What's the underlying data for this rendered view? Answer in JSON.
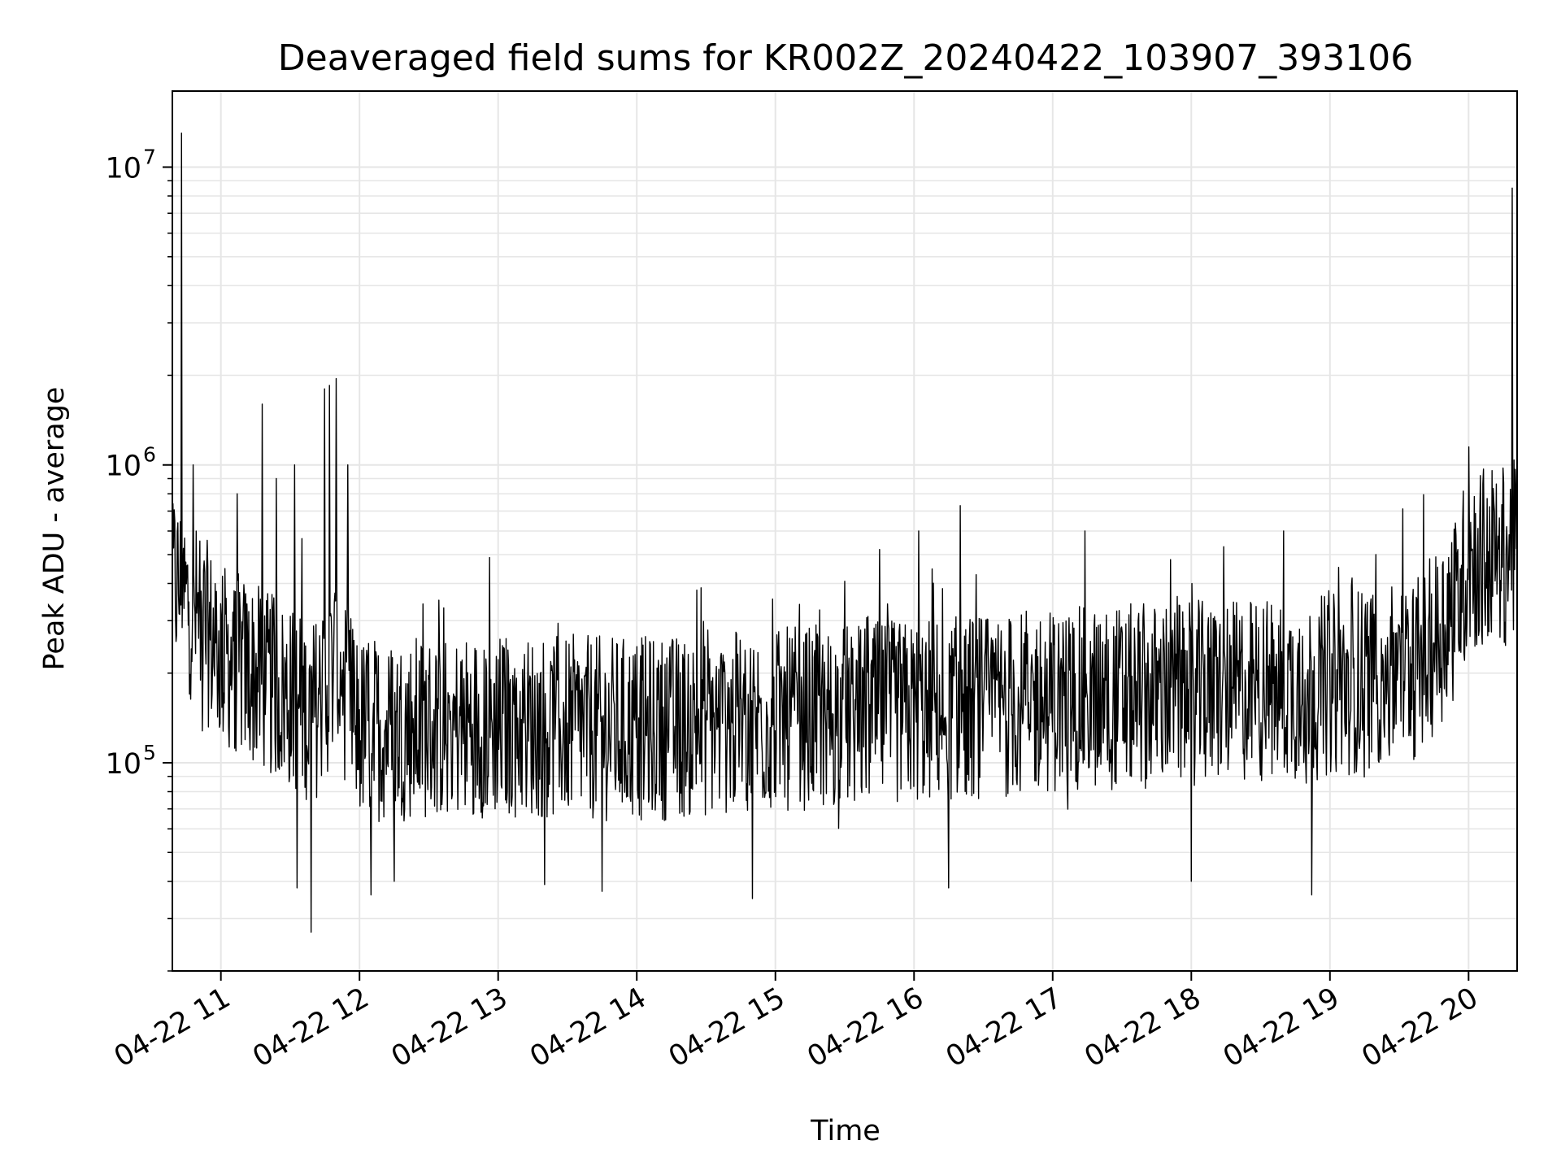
{
  "chart_data": {
    "type": "line",
    "title": "Deaveraged field sums for KR002Z_20240422_103907_393106",
    "xlabel": "Time",
    "ylabel": "Peak ADU - average",
    "x_scale": "time",
    "y_scale": "log",
    "xlim": [
      "2024-04-22 10:39",
      "2024-04-22 20:21"
    ],
    "ylim": [
      20000,
      18000000
    ],
    "x_ticks": [
      "04-22 11",
      "04-22 12",
      "04-22 13",
      "04-22 14",
      "04-22 15",
      "04-22 16",
      "04-22 17",
      "04-22 18",
      "04-22 19",
      "04-22 20"
    ],
    "y_ticks": [
      {
        "base": "10",
        "exp": "5",
        "value": 100000
      },
      {
        "base": "10",
        "exp": "6",
        "value": 1000000
      },
      {
        "base": "10",
        "exp": "7",
        "value": 10000000
      }
    ],
    "grid": true,
    "line_color": "#000000",
    "grid_color": "#e6e6e6",
    "series": [
      {
        "name": "",
        "baseline": [
          {
            "t": "2024-04-22 10:39",
            "v": 450000
          },
          {
            "t": "2024-04-22 11:00",
            "v": 250000
          },
          {
            "t": "2024-04-22 11:20",
            "v": 200000
          },
          {
            "t": "2024-04-22 11:40",
            "v": 160000
          },
          {
            "t": "2024-04-22 11:50",
            "v": 230000
          },
          {
            "t": "2024-04-22 12:00",
            "v": 140000
          },
          {
            "t": "2024-04-22 13:00",
            "v": 145000
          },
          {
            "t": "2024-04-22 14:00",
            "v": 140000
          },
          {
            "t": "2024-04-22 15:00",
            "v": 150000
          },
          {
            "t": "2024-04-22 16:00",
            "v": 160000
          },
          {
            "t": "2024-04-22 17:00",
            "v": 175000
          },
          {
            "t": "2024-04-22 18:00",
            "v": 185000
          },
          {
            "t": "2024-04-22 19:00",
            "v": 195000
          },
          {
            "t": "2024-04-22 19:40",
            "v": 230000
          },
          {
            "t": "2024-04-22 19:55",
            "v": 380000
          },
          {
            "t": "2024-04-22 20:00",
            "v": 520000
          },
          {
            "t": "2024-04-22 20:21",
            "v": 550000
          }
        ],
        "peaks": [
          {
            "t": "2024-04-22 10:43",
            "v": 13000000
          },
          {
            "t": "2024-04-22 10:48",
            "v": 1000000
          },
          {
            "t": "2024-04-22 11:07",
            "v": 800000
          },
          {
            "t": "2024-04-22 11:18",
            "v": 1600000
          },
          {
            "t": "2024-04-22 11:24",
            "v": 900000
          },
          {
            "t": "2024-04-22 11:32",
            "v": 1000000
          },
          {
            "t": "2024-04-22 11:45",
            "v": 1800000
          },
          {
            "t": "2024-04-22 11:47",
            "v": 1850000
          },
          {
            "t": "2024-04-22 11:50",
            "v": 1950000
          },
          {
            "t": "2024-04-22 11:55",
            "v": 1000000
          },
          {
            "t": "2024-04-22 14:26",
            "v": 380000
          },
          {
            "t": "2024-04-22 15:45",
            "v": 520000
          },
          {
            "t": "2024-04-22 16:02",
            "v": 600000
          },
          {
            "t": "2024-04-22 16:20",
            "v": 730000
          },
          {
            "t": "2024-04-22 17:14",
            "v": 600000
          },
          {
            "t": "2024-04-22 18:40",
            "v": 600000
          },
          {
            "t": "2024-04-22 19:20",
            "v": 500000
          },
          {
            "t": "2024-04-22 20:00",
            "v": 1150000
          },
          {
            "t": "2024-04-22 20:19",
            "v": 8500000
          }
        ],
        "troughs": [
          {
            "t": "2024-04-22 11:33",
            "v": 38000
          },
          {
            "t": "2024-04-22 11:39",
            "v": 27000
          },
          {
            "t": "2024-04-22 12:05",
            "v": 36000
          },
          {
            "t": "2024-04-22 12:15",
            "v": 40000
          },
          {
            "t": "2024-04-22 13:20",
            "v": 39000
          },
          {
            "t": "2024-04-22 13:45",
            "v": 37000
          },
          {
            "t": "2024-04-22 14:50",
            "v": 35000
          },
          {
            "t": "2024-04-22 16:15",
            "v": 38000
          },
          {
            "t": "2024-04-22 18:00",
            "v": 40000
          },
          {
            "t": "2024-04-22 18:52",
            "v": 36000
          }
        ],
        "noise_band": {
          "low_factor": 0.45,
          "high_factor": 1.9
        }
      }
    ]
  }
}
